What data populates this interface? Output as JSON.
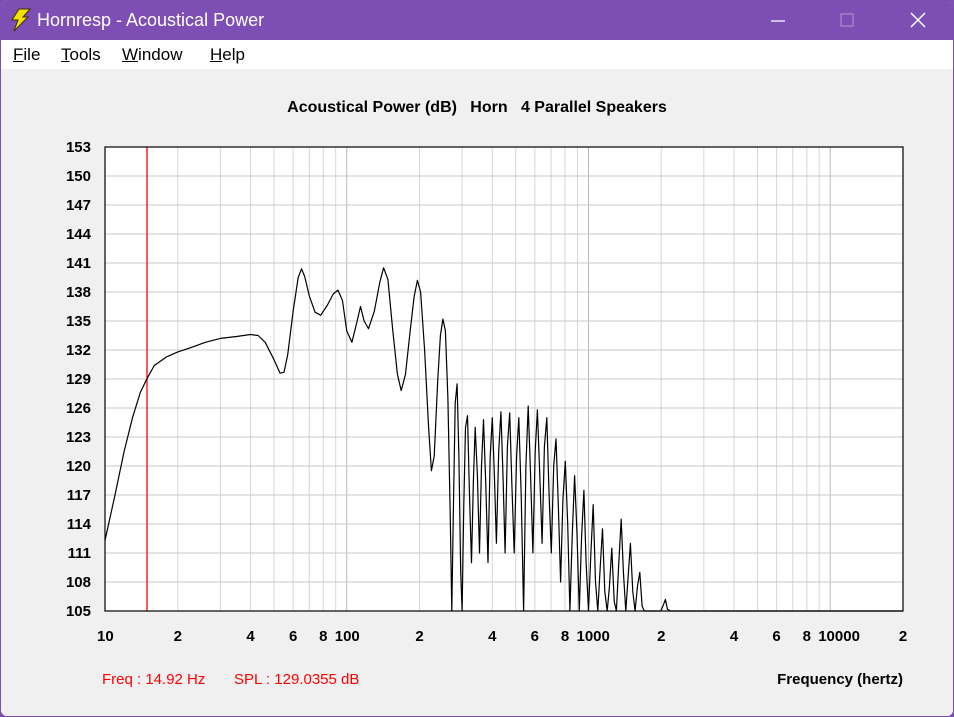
{
  "window": {
    "title": "Hornresp - Acoustical Power",
    "icon": "lightning-bolt-icon",
    "controls": [
      "minimize-icon",
      "maximize-icon",
      "close-icon"
    ]
  },
  "menu": [
    {
      "label": "File",
      "mnemonic": "F",
      "rest": "ile"
    },
    {
      "label": "Tools",
      "mnemonic": "T",
      "rest": "ools"
    },
    {
      "label": "Window",
      "mnemonic": "W",
      "rest": "indow"
    },
    {
      "label": "Help",
      "mnemonic": "H",
      "rest": "elp"
    }
  ],
  "chart_data": {
    "type": "line",
    "title": "Acoustical Power (dB)   Horn   4 Parallel Speakers",
    "xlabel": "Frequency (hertz)",
    "ylabel": "",
    "x_scale": "log",
    "xlim": [
      10,
      20000
    ],
    "ylim": [
      105,
      153
    ],
    "y_ticks": [
      153,
      150,
      147,
      144,
      141,
      138,
      135,
      132,
      129,
      126,
      123,
      120,
      117,
      114,
      111,
      108,
      105
    ],
    "x_tick_labels": [
      {
        "value": 10,
        "label": "10"
      },
      {
        "value": 20,
        "label": "2"
      },
      {
        "value": 40,
        "label": "4"
      },
      {
        "value": 60,
        "label": "6"
      },
      {
        "value": 80,
        "label": "8"
      },
      {
        "value": 100,
        "label": "100"
      },
      {
        "value": 200,
        "label": "2"
      },
      {
        "value": 400,
        "label": "4"
      },
      {
        "value": 600,
        "label": "6"
      },
      {
        "value": 800,
        "label": "8"
      },
      {
        "value": 1000,
        "label": "1000"
      },
      {
        "value": 2000,
        "label": "2"
      },
      {
        "value": 4000,
        "label": "4"
      },
      {
        "value": 6000,
        "label": "6"
      },
      {
        "value": 8000,
        "label": "8"
      },
      {
        "value": 10000,
        "label": "10000"
      },
      {
        "value": 20000,
        "label": "2"
      }
    ],
    "grid": true,
    "marker": {
      "x": 14.92,
      "color": "#ff0000"
    },
    "series": [
      {
        "color": "#000000",
        "points": [
          [
            10,
            112.3
          ],
          [
            11,
            117.0
          ],
          [
            12,
            121.5
          ],
          [
            13,
            125.0
          ],
          [
            14,
            127.6
          ],
          [
            14.92,
            129.04
          ],
          [
            16,
            130.4
          ],
          [
            18,
            131.3
          ],
          [
            20,
            131.8
          ],
          [
            23,
            132.3
          ],
          [
            26,
            132.8
          ],
          [
            30,
            133.2
          ],
          [
            35,
            133.4
          ],
          [
            40,
            133.6
          ],
          [
            43,
            133.5
          ],
          [
            46,
            132.8
          ],
          [
            50,
            131.0
          ],
          [
            53,
            129.6
          ],
          [
            55,
            129.7
          ],
          [
            57,
            131.5
          ],
          [
            60,
            136.0
          ],
          [
            63,
            139.5
          ],
          [
            65,
            140.4
          ],
          [
            67,
            139.6
          ],
          [
            70,
            137.6
          ],
          [
            74,
            135.9
          ],
          [
            78,
            135.6
          ],
          [
            83,
            136.6
          ],
          [
            88,
            137.8
          ],
          [
            92,
            138.2
          ],
          [
            96,
            137.1
          ],
          [
            100,
            134.0
          ],
          [
            105,
            132.8
          ],
          [
            110,
            134.8
          ],
          [
            114,
            136.5
          ],
          [
            118,
            135.0
          ],
          [
            123,
            134.2
          ],
          [
            130,
            136.0
          ],
          [
            137,
            139.0
          ],
          [
            142,
            140.5
          ],
          [
            148,
            139.3
          ],
          [
            155,
            134.0
          ],
          [
            162,
            129.5
          ],
          [
            168,
            127.8
          ],
          [
            175,
            129.5
          ],
          [
            183,
            134.0
          ],
          [
            190,
            137.5
          ],
          [
            196,
            139.2
          ],
          [
            202,
            138.0
          ],
          [
            210,
            132.0
          ],
          [
            218,
            124.0
          ],
          [
            224,
            119.5
          ],
          [
            230,
            121.0
          ],
          [
            238,
            129.0
          ],
          [
            244,
            133.5
          ],
          [
            250,
            135.2
          ],
          [
            256,
            134.0
          ],
          [
            262,
            127.0
          ],
          [
            268,
            115.0
          ],
          [
            272,
            105.0
          ],
          [
            276,
            115.0
          ],
          [
            281,
            126.5
          ],
          [
            286,
            128.5
          ],
          [
            291,
            121.0
          ],
          [
            296,
            109.0
          ],
          [
            300,
            105.0
          ],
          [
            305,
            116.0
          ],
          [
            310,
            124.0
          ],
          [
            316,
            125.2
          ],
          [
            322,
            117.0
          ],
          [
            328,
            110.0
          ],
          [
            334,
            118.5
          ],
          [
            340,
            124.0
          ],
          [
            347,
            119.0
          ],
          [
            354,
            111.0
          ],
          [
            361,
            120.0
          ],
          [
            368,
            124.8
          ],
          [
            376,
            118.0
          ],
          [
            384,
            110.0
          ],
          [
            392,
            121.0
          ],
          [
            400,
            125.0
          ],
          [
            408,
            119.0
          ],
          [
            416,
            112.0
          ],
          [
            425,
            121.5
          ],
          [
            434,
            125.6
          ],
          [
            443,
            119.0
          ],
          [
            452,
            111.0
          ],
          [
            462,
            122.0
          ],
          [
            472,
            125.5
          ],
          [
            482,
            118.0
          ],
          [
            493,
            111.0
          ],
          [
            504,
            121.0
          ],
          [
            515,
            125.0
          ],
          [
            527,
            117.0
          ],
          [
            539,
            105.0
          ],
          [
            551,
            120.0
          ],
          [
            563,
            126.2
          ],
          [
            576,
            119.0
          ],
          [
            589,
            111.0
          ],
          [
            602,
            121.5
          ],
          [
            615,
            125.8
          ],
          [
            629,
            119.0
          ],
          [
            643,
            112.0
          ],
          [
            657,
            122.0
          ],
          [
            672,
            125.0
          ],
          [
            687,
            117.0
          ],
          [
            702,
            111.0
          ],
          [
            718,
            120.0
          ],
          [
            734,
            122.8
          ],
          [
            750,
            116.0
          ],
          [
            767,
            108.0
          ],
          [
            784,
            116.5
          ],
          [
            802,
            120.5
          ],
          [
            820,
            114.0
          ],
          [
            838,
            105.0
          ],
          [
            857,
            113.0
          ],
          [
            876,
            119.0
          ],
          [
            896,
            113.0
          ],
          [
            916,
            105.0
          ],
          [
            936,
            112.5
          ],
          [
            957,
            117.5
          ],
          [
            978,
            110.0
          ],
          [
            1000,
            105.0
          ],
          [
            1023,
            111.0
          ],
          [
            1046,
            116.0
          ],
          [
            1069,
            108.0
          ],
          [
            1093,
            105.0
          ],
          [
            1118,
            109.5
          ],
          [
            1143,
            113.5
          ],
          [
            1168,
            107.0
          ],
          [
            1195,
            105.0
          ],
          [
            1221,
            107.5
          ],
          [
            1249,
            111.5
          ],
          [
            1277,
            106.0
          ],
          [
            1305,
            105.0
          ],
          [
            1335,
            110.0
          ],
          [
            1365,
            114.5
          ],
          [
            1395,
            109.0
          ],
          [
            1427,
            105.0
          ],
          [
            1459,
            108.5
          ],
          [
            1491,
            112.0
          ],
          [
            1525,
            107.0
          ],
          [
            1559,
            105.0
          ],
          [
            1594,
            107.5
          ],
          [
            1630,
            109.0
          ],
          [
            1666,
            105.5
          ],
          [
            1704,
            105.0
          ],
          [
            1742,
            105.0
          ],
          [
            1781,
            105.0
          ],
          [
            1821,
            105.0
          ],
          [
            1862,
            105.0
          ],
          [
            1904,
            105.0
          ],
          [
            1946,
            105.0
          ],
          [
            1990,
            105.0
          ],
          [
            2040,
            105.6
          ],
          [
            2080,
            106.2
          ],
          [
            2120,
            105.2
          ],
          [
            2180,
            105.0
          ],
          [
            20000,
            105.0
          ]
        ]
      }
    ]
  },
  "status": {
    "freq_text": "Freq : 14.92 Hz",
    "spl_text": "SPL : 129.0355 dB"
  }
}
